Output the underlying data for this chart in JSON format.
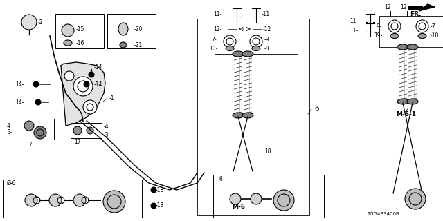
{
  "bg_color": "#ffffff",
  "diagram_code": "TGG4B3400B",
  "fr_label": "FR.",
  "M6_label": "M-6",
  "M61_label": "M-6-1",
  "line_color": "#000000",
  "gray_light": "#c8c8c8",
  "gray_mid": "#909090",
  "gray_dark": "#606060"
}
